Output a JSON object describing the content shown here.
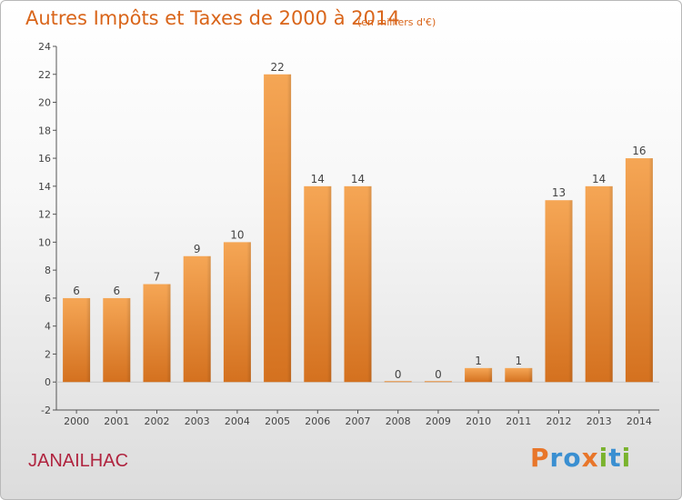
{
  "header": {
    "title": "Autres Impôts et Taxes de 2000 à 2014",
    "unit_note": "(en milliers d'€)"
  },
  "footer": {
    "commune": "JANAILHAC",
    "brand": [
      "P",
      "r",
      "o",
      "x",
      "i",
      "t",
      "i"
    ],
    "brand_colors": [
      "#e8762a",
      "#3a8fd1",
      "#3a8fd1",
      "#e8762a",
      "#7ab32e",
      "#3a8fd1",
      "#7ab32e"
    ]
  },
  "chart_data": {
    "type": "bar",
    "categories": [
      "2000",
      "2001",
      "2002",
      "2003",
      "2004",
      "2005",
      "2006",
      "2007",
      "2008",
      "2009",
      "2010",
      "2011",
      "2012",
      "2013",
      "2014"
    ],
    "values": [
      6,
      6,
      7,
      9,
      10,
      22,
      14,
      14,
      0,
      0,
      1,
      1,
      13,
      14,
      16
    ],
    "ylim": [
      -2,
      24
    ],
    "yticks": [
      -2,
      0,
      2,
      4,
      6,
      8,
      10,
      12,
      14,
      16,
      18,
      20,
      22,
      24
    ],
    "grid": false,
    "bar_color": "#ef8c34"
  }
}
